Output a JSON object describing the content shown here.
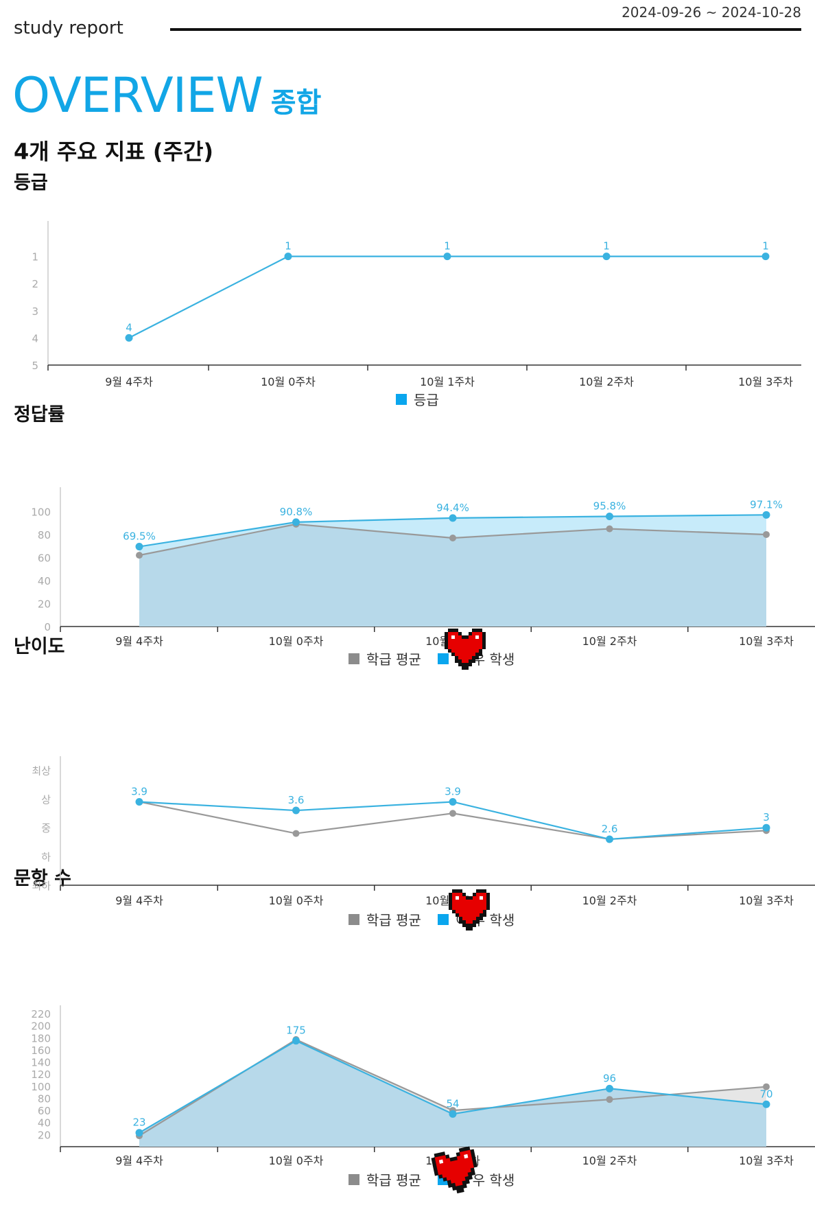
{
  "header": {
    "brand": "study report",
    "date_range": "2024-09-26 ~ 2024-10-28"
  },
  "overview": {
    "title": "OVERVIEW",
    "title_ko": "종합",
    "subtitle": "4개 주요 지표 (주간)"
  },
  "colors": {
    "accent": "#12a6e6",
    "student_line": "#3ab2e0",
    "student_fill": "#c7ebfa",
    "average_line": "#999999",
    "overlap_fill": "#b7d9ea",
    "average_only_fill": "#e6e6e6",
    "legend_average": "#8c8c8c",
    "legend_student": "#0aa6ee",
    "sticker": "#e60000"
  },
  "stickers": [
    {
      "section": "accuracy",
      "icon": "pixel-heart-icon"
    },
    {
      "section": "difficulty",
      "icon": "pixel-heart-icon"
    },
    {
      "section": "questions",
      "icon": "pixel-heart-icon"
    }
  ],
  "chart_data": [
    {
      "id": "grade",
      "title": "등급",
      "type": "line",
      "categories": [
        "9월 4주차",
        "10월 0주차",
        "10월 1주차",
        "10월 2주차",
        "10월 3주차"
      ],
      "ylim": [
        5,
        0
      ],
      "y_reversed": true,
      "yticks": [
        {
          "v": 1,
          "label": "1"
        },
        {
          "v": 2,
          "label": "2"
        },
        {
          "v": 3,
          "label": "3"
        },
        {
          "v": 4,
          "label": "4"
        },
        {
          "v": 5,
          "label": "5"
        }
      ],
      "series": [
        {
          "name": "등급",
          "role": "student",
          "values": [
            4,
            1,
            1,
            1,
            1
          ],
          "labels": [
            "4",
            "1",
            "1",
            "1",
            "1"
          ]
        }
      ],
      "legend": [
        "등급"
      ]
    },
    {
      "id": "accuracy",
      "title": "정답률",
      "type": "area",
      "categories": [
        "9월 4주차",
        "10월 0주차",
        "10월 1주차",
        "10월 2주차",
        "10월 3주차"
      ],
      "ylim": [
        0,
        114
      ],
      "yticks": [
        {
          "v": 0,
          "label": "0"
        },
        {
          "v": 20,
          "label": "20"
        },
        {
          "v": 40,
          "label": "40"
        },
        {
          "v": 60,
          "label": "60"
        },
        {
          "v": 80,
          "label": "80"
        },
        {
          "v": 100,
          "label": "100"
        }
      ],
      "series": [
        {
          "name": "학급 평균",
          "role": "average",
          "values": [
            62,
            89,
            77,
            85,
            80
          ]
        },
        {
          "name": "이 우 학생",
          "role": "student",
          "values": [
            69.5,
            90.8,
            94.4,
            95.8,
            97.1
          ],
          "labels": [
            "69.5%",
            "90.8%",
            "94.4%",
            "95.8%",
            "97.1%"
          ]
        }
      ],
      "legend": [
        "학급 평균",
        "이 우 학생"
      ]
    },
    {
      "id": "difficulty",
      "title": "난이도",
      "type": "line",
      "categories": [
        "9월 4주차",
        "10월 0주차",
        "10월 1주차",
        "10월 2주차",
        "10월 3주차"
      ],
      "ylim": [
        1,
        5.2
      ],
      "yticks": [
        {
          "v": 1,
          "label": "최하"
        },
        {
          "v": 2,
          "label": "하"
        },
        {
          "v": 3,
          "label": "중"
        },
        {
          "v": 4,
          "label": "상"
        },
        {
          "v": 5,
          "label": "최상"
        }
      ],
      "series": [
        {
          "name": "학급 평균",
          "role": "average",
          "values": [
            3.9,
            2.8,
            3.5,
            2.6,
            2.9
          ]
        },
        {
          "name": "이 우 학생",
          "role": "student",
          "values": [
            3.9,
            3.6,
            3.9,
            2.6,
            3.0
          ],
          "labels": [
            "3.9",
            "3.6",
            "3.9",
            "2.6",
            "3"
          ]
        }
      ],
      "legend": [
        "학급 평균",
        "이 우 학생"
      ]
    },
    {
      "id": "questions",
      "title": "문항 수",
      "type": "area",
      "categories": [
        "9월 4주차",
        "10월 0주차",
        "10월 1주차",
        "10월 2주차",
        "10월 3주차"
      ],
      "ylim": [
        0,
        220
      ],
      "yticks": [
        {
          "v": 20,
          "label": "20"
        },
        {
          "v": 40,
          "label": "40"
        },
        {
          "v": 60,
          "label": "60"
        },
        {
          "v": 80,
          "label": "80"
        },
        {
          "v": 100,
          "label": "100"
        },
        {
          "v": 120,
          "label": "120"
        },
        {
          "v": 140,
          "label": "140"
        },
        {
          "v": 160,
          "label": "160"
        },
        {
          "v": 180,
          "label": "180"
        },
        {
          "v": 200,
          "label": "200"
        },
        {
          "v": 220,
          "label": "220"
        }
      ],
      "series": [
        {
          "name": "학급 평균",
          "role": "average",
          "values": [
            18,
            177,
            60,
            78,
            99
          ]
        },
        {
          "name": "이 우 학생",
          "role": "student",
          "values": [
            23,
            175,
            54,
            96,
            70
          ],
          "labels": [
            "23",
            "175",
            "54",
            "96",
            "70"
          ]
        }
      ],
      "legend": [
        "학급 평균",
        "이 우 학생"
      ]
    }
  ]
}
